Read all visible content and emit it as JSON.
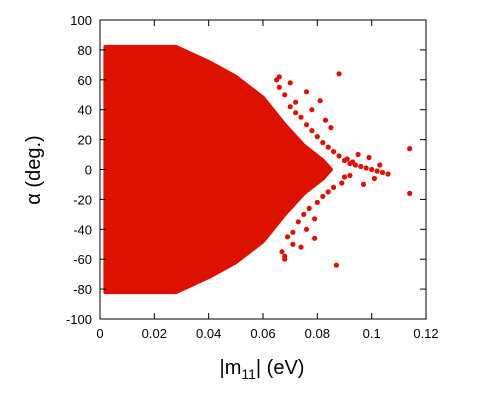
{
  "chart_data": {
    "type": "scatter",
    "title": "",
    "xlabel": {
      "base": "|m",
      "sub": "11",
      "tail": "| (eV)"
    },
    "ylabel": "α (deg.)",
    "xlim": [
      0,
      0.12
    ],
    "ylim": [
      -100,
      100
    ],
    "xticks": [
      "0",
      "0.02",
      "0.04",
      "0.06",
      "0.08",
      "0.1",
      "0.12"
    ],
    "xtick_values": [
      0,
      0.02,
      0.04,
      0.06,
      0.08,
      0.1,
      0.12
    ],
    "yticks": [
      "100",
      "80",
      "60",
      "40",
      "20",
      "0",
      "-20",
      "-40",
      "-60",
      "-80",
      "-100"
    ],
    "ytick_values": [
      100,
      80,
      60,
      40,
      20,
      0,
      -20,
      -40,
      -60,
      -80,
      -100
    ],
    "grid": false,
    "legend": "none",
    "marker_color": "#dd1100",
    "series": [
      {
        "x": [
          0.065,
          0.066,
          0.068,
          0.07,
          0.072,
          0.074,
          0.076,
          0.078,
          0.08,
          0.082,
          0.084,
          0.086,
          0.088,
          0.09,
          0.092,
          0.094,
          0.096,
          0.098,
          0.1,
          0.102,
          0.104,
          0.106,
          0.114,
          0.114,
          0.088,
          0.087,
          0.081,
          0.079,
          0.076,
          0.074,
          0.07,
          0.068,
          0.066,
          0.085,
          0.083,
          0.078,
          0.072,
          0.069,
          0.091,
          0.093,
          0.095,
          0.097,
          0.099,
          0.101,
          0.103,
          0.089,
          0.086,
          0.084,
          0.08,
          0.077,
          0.075,
          0.073,
          0.071,
          0.067,
          0.09,
          0.092,
          0.082,
          0.079,
          0.076,
          0.071,
          0.068
        ],
        "y": [
          60,
          55,
          50,
          42,
          38,
          35,
          30,
          26,
          22,
          18,
          15,
          12,
          9,
          6,
          4,
          3,
          2,
          1,
          0,
          -1,
          -2,
          -3,
          14,
          -16,
          64,
          -64,
          46,
          -46,
          52,
          -52,
          58,
          -58,
          62,
          28,
          33,
          40,
          45,
          -45,
          7,
          5,
          10,
          -10,
          8,
          -6,
          3,
          -9,
          -12,
          -15,
          -22,
          -26,
          -30,
          -35,
          -42,
          -55,
          -5,
          -4,
          -18,
          -33,
          -40,
          -50,
          -60
        ]
      }
    ]
  }
}
